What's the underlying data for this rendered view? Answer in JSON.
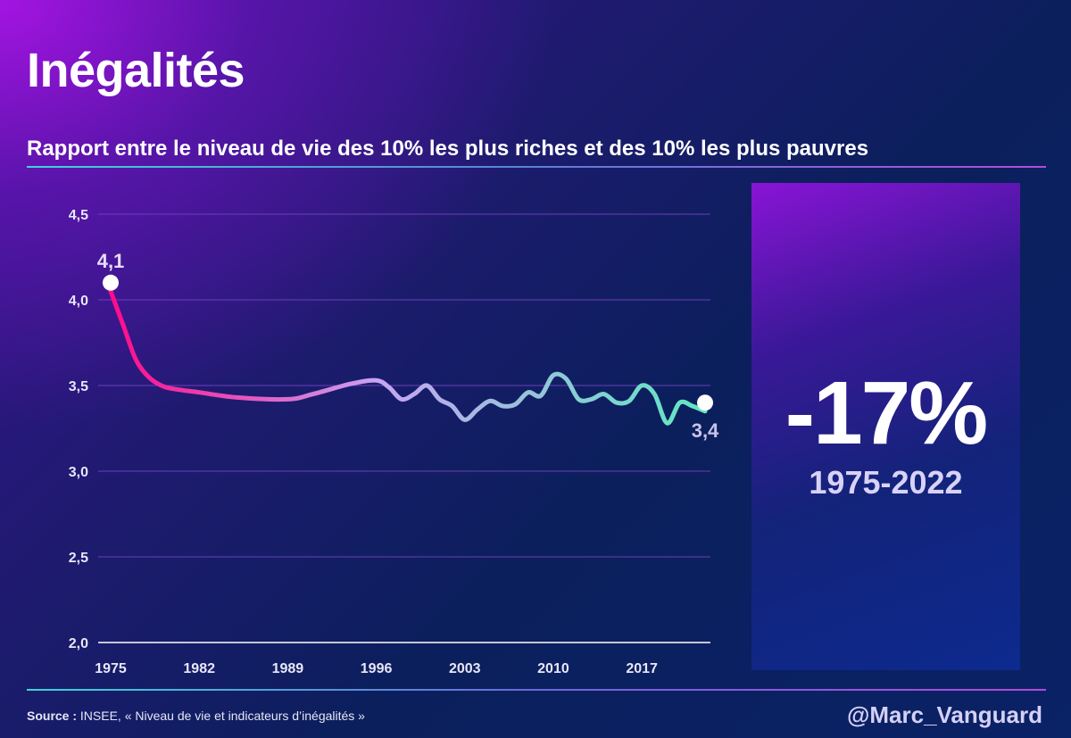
{
  "header": {
    "title": "Inégalités",
    "subtitle": "Rapport entre le niveau de vie des 10% les plus riches et des 10% les plus pauvres"
  },
  "highlight": {
    "value": "-17%",
    "period": "1975-2022"
  },
  "footer": {
    "source_label": "Source :",
    "source_text": " INSEE, « Niveau de vie et indicateurs d’inégalités »",
    "handle": "@Marc_Vanguard"
  },
  "colors": {
    "line_start": "#ff0a8a",
    "line_mid": "#c7a4f2",
    "line_end": "#5fe8c0",
    "grid": "#6a3fb8",
    "axis": "#ffffff",
    "marker": "#ffffff",
    "first_label": "#e6dcf8",
    "last_label": "#c8c2ec"
  },
  "chart_data": {
    "type": "line",
    "title": "Rapport entre le niveau de vie des 10% les plus riches et des 10% les plus pauvres",
    "xlabel": "",
    "ylabel": "",
    "x_ticks": [
      "1975",
      "1982",
      "1989",
      "1996",
      "2003",
      "2010",
      "2017"
    ],
    "y_ticks": [
      "2,0",
      "2,5",
      "3,0",
      "3,5",
      "4,0",
      "4,5"
    ],
    "y_tick_values": [
      2.0,
      2.5,
      3.0,
      3.5,
      4.0,
      4.5
    ],
    "xlim": [
      1975,
      2022
    ],
    "ylim": [
      2.0,
      4.5
    ],
    "grid": true,
    "series": [
      {
        "x": [
          1975,
          1976,
          1977,
          1978,
          1979,
          1980,
          1982,
          1985,
          1989,
          1991,
          1994,
          1996,
          1997,
          1998,
          1999,
          2000,
          2001,
          2002,
          2003,
          2004,
          2005,
          2006,
          2007,
          2008,
          2009,
          2010,
          2011,
          2012,
          2013,
          2014,
          2015,
          2016,
          2017,
          2018,
          2019,
          2020,
          2021,
          2022
        ],
        "y": [
          4.05,
          3.85,
          3.65,
          3.55,
          3.5,
          3.48,
          3.46,
          3.43,
          3.42,
          3.45,
          3.51,
          3.53,
          3.49,
          3.42,
          3.45,
          3.5,
          3.42,
          3.38,
          3.3,
          3.36,
          3.41,
          3.38,
          3.39,
          3.46,
          3.44,
          3.56,
          3.54,
          3.42,
          3.42,
          3.45,
          3.4,
          3.41,
          3.5,
          3.45,
          3.28,
          3.4,
          3.38,
          3.35
        ]
      }
    ],
    "annotations": [
      {
        "x": 1975,
        "y": 4.1,
        "label": "4,1"
      },
      {
        "x": 2022,
        "y": 3.4,
        "label": "3,4"
      }
    ]
  }
}
